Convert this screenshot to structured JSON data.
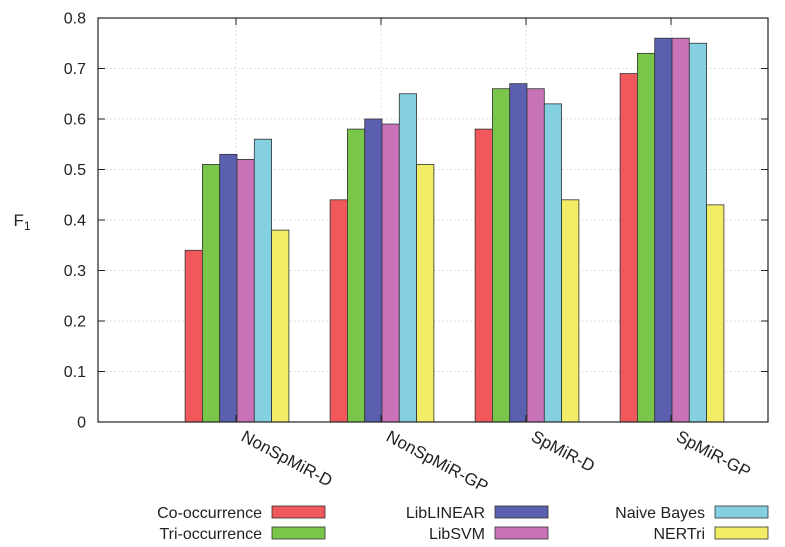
{
  "chart_data": {
    "type": "bar",
    "ylabel": "F",
    "ylabel_sub": "1",
    "ylim": [
      0,
      0.8
    ],
    "yticks": [
      "0",
      "0.1",
      "0.2",
      "0.3",
      "0.4",
      "0.5",
      "0.6",
      "0.7",
      "0.8"
    ],
    "grid": true,
    "legend_position": "bottom",
    "categories": [
      "NonSpMiR-D",
      "NonSpMiR-GP",
      "SpMiR-D",
      "SpMiR-GP"
    ],
    "series": [
      {
        "name": "Co-occurrence",
        "color": "#f0585c",
        "values": [
          0.34,
          0.44,
          0.58,
          0.69
        ]
      },
      {
        "name": "Tri-occurrence",
        "color": "#7ac64b",
        "values": [
          0.51,
          0.58,
          0.66,
          0.73
        ]
      },
      {
        "name": "LibLINEAR",
        "color": "#5b5faf",
        "values": [
          0.53,
          0.6,
          0.67,
          0.76
        ]
      },
      {
        "name": "LibSVM",
        "color": "#c873b8",
        "values": [
          0.52,
          0.59,
          0.66,
          0.76
        ]
      },
      {
        "name": "Naive Bayes",
        "color": "#84cfe0",
        "values": [
          0.56,
          0.65,
          0.63,
          0.75
        ]
      },
      {
        "name": "NERTri",
        "color": "#f2ec66",
        "values": [
          0.38,
          0.51,
          0.44,
          0.43
        ]
      }
    ]
  }
}
